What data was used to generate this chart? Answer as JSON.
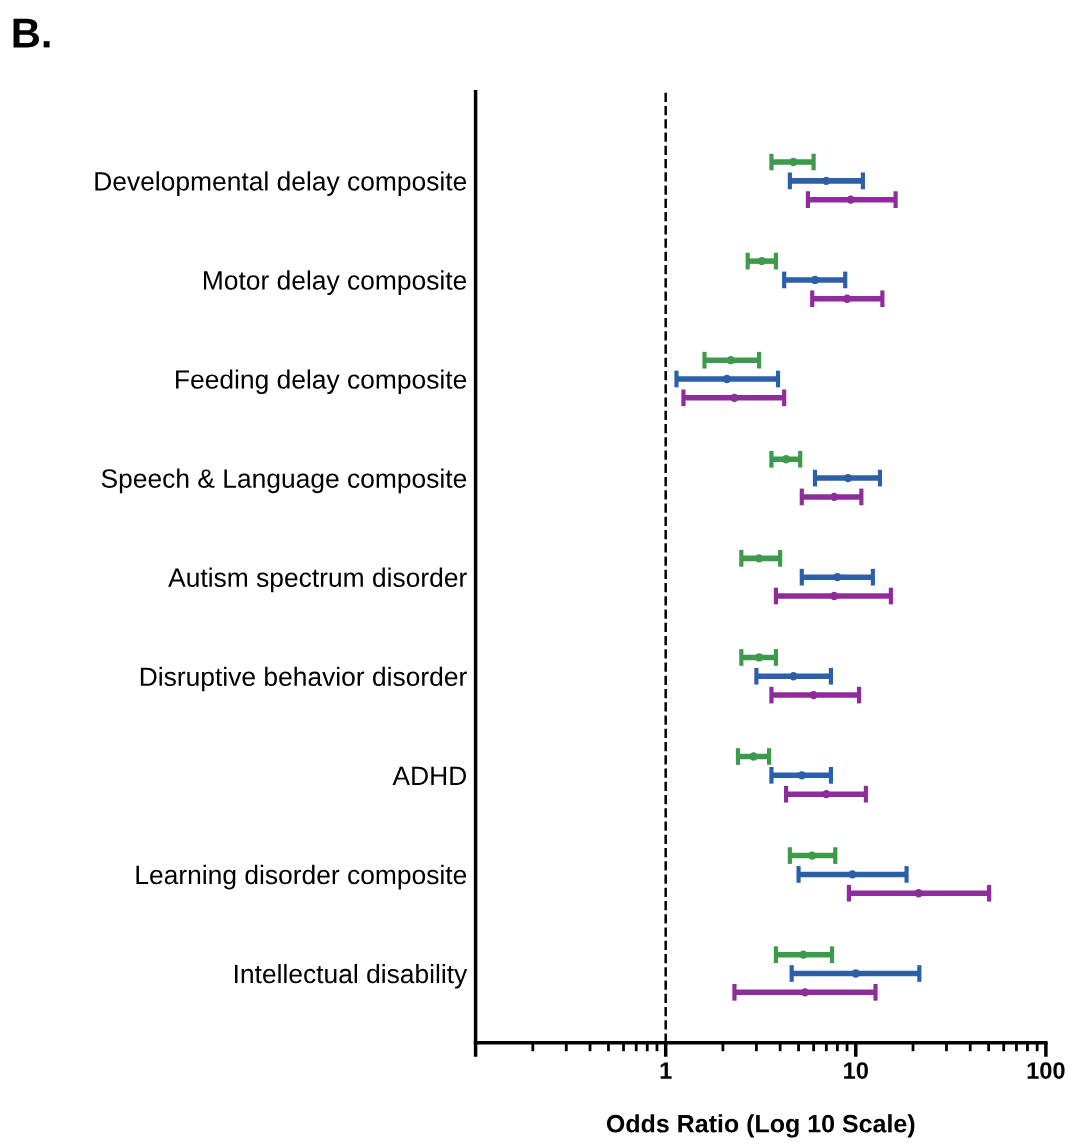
{
  "chart_data": {
    "type": "scatter",
    "orientation": "horizontal",
    "log": "x",
    "xlabel": "Odds Ratio (Log 10 Scale)",
    "annotations": [
      "B."
    ],
    "categories": [
      "Developmental delay composite",
      "Motor delay composite",
      "Feeding delay composite",
      "Speech & Language composite",
      "Autism spectrum disorder",
      "Disruptive behavior disorder",
      "ADHD",
      "Learning disorder composite",
      "Intellectual disability"
    ],
    "series": [
      {
        "color": "#3d9a4c",
        "values": [
          4.7,
          3.2,
          2.2,
          4.3,
          3.1,
          3.1,
          2.9,
          5.9,
          5.3
        ],
        "errors": [
          [
            3.6,
            6.0
          ],
          [
            2.7,
            3.8
          ],
          [
            1.6,
            3.1
          ],
          [
            3.6,
            5.1
          ],
          [
            2.5,
            4.0
          ],
          [
            2.5,
            3.8
          ],
          [
            2.4,
            3.5
          ],
          [
            4.5,
            7.8
          ],
          [
            3.8,
            7.5
          ]
        ]
      },
      {
        "color": "#2b5fa8",
        "values": [
          7.0,
          6.1,
          2.1,
          9.1,
          8.0,
          4.7,
          5.2,
          9.6,
          10.0
        ],
        "errors": [
          [
            4.5,
            10.9
          ],
          [
            4.2,
            8.8
          ],
          [
            1.14,
            3.9
          ],
          [
            6.1,
            13.4
          ],
          [
            5.2,
            12.3
          ],
          [
            3.0,
            7.4
          ],
          [
            3.6,
            7.4
          ],
          [
            5.0,
            18.5
          ],
          [
            4.6,
            21.6
          ]
        ]
      },
      {
        "color": "#8e2c9c",
        "values": [
          9.4,
          9.0,
          2.3,
          7.7,
          7.7,
          6.0,
          7.0,
          21.4,
          5.4
        ],
        "errors": [
          [
            5.6,
            16.2
          ],
          [
            5.9,
            13.8
          ],
          [
            1.24,
            4.2
          ],
          [
            5.2,
            10.7
          ],
          [
            3.8,
            15.3
          ],
          [
            3.6,
            10.4
          ],
          [
            4.3,
            11.3
          ],
          [
            9.2,
            50.3
          ],
          [
            2.3,
            12.7
          ]
        ]
      }
    ],
    "xlim": [
      0.1,
      100
    ],
    "xticks": [
      {
        "value": 0.1,
        "label": null
      },
      1,
      10,
      100
    ],
    "marker": "circle",
    "grid": false,
    "legend": false,
    "ref_lines": [
      {
        "axis": "x",
        "value": 1,
        "line_style": "dashed",
        "color": "#000000"
      }
    ]
  }
}
